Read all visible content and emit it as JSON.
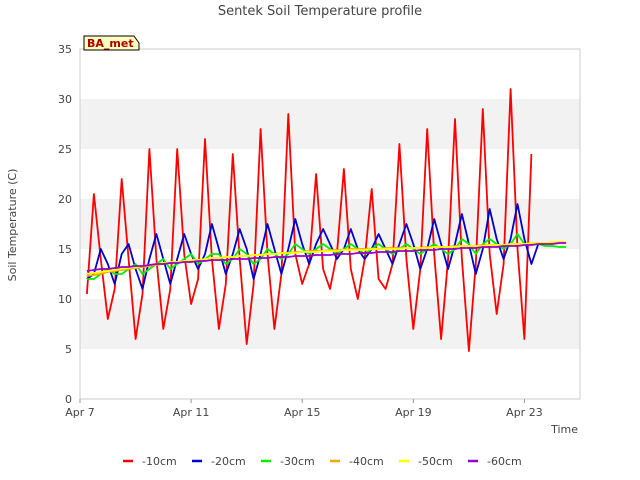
{
  "chart_data": {
    "type": "line",
    "title": "Sentek Soil Temperature profile",
    "xlabel": "Time",
    "ylabel": "Soil Temperature (C)",
    "station_label": "BA_met",
    "x_unit": "date",
    "xlim": [
      "2023-04-07",
      "2023-04-25"
    ],
    "x_ticks": [
      {
        "date": "2023-04-07",
        "label": "Apr 7"
      },
      {
        "date": "2023-04-11",
        "label": "Apr 11"
      },
      {
        "date": "2023-04-15",
        "label": "Apr 15"
      },
      {
        "date": "2023-04-19",
        "label": "Apr 19"
      },
      {
        "date": "2023-04-23",
        "label": "Apr 23"
      }
    ],
    "ylim": [
      0,
      35
    ],
    "y_ticks": [
      0,
      5,
      10,
      15,
      20,
      25,
      30,
      35
    ],
    "grid": "horizontal bands",
    "legend_position": "bottom",
    "x": [
      "2023-04-07 06:00",
      "2023-04-07 12:00",
      "2023-04-07 18:00",
      "2023-04-08 00:00",
      "2023-04-08 06:00",
      "2023-04-08 12:00",
      "2023-04-08 18:00",
      "2023-04-09 00:00",
      "2023-04-09 06:00",
      "2023-04-09 12:00",
      "2023-04-09 18:00",
      "2023-04-10 00:00",
      "2023-04-10 06:00",
      "2023-04-10 12:00",
      "2023-04-10 18:00",
      "2023-04-11 00:00",
      "2023-04-11 06:00",
      "2023-04-11 12:00",
      "2023-04-11 18:00",
      "2023-04-12 00:00",
      "2023-04-12 06:00",
      "2023-04-12 12:00",
      "2023-04-12 18:00",
      "2023-04-13 00:00",
      "2023-04-13 06:00",
      "2023-04-13 12:00",
      "2023-04-13 18:00",
      "2023-04-14 00:00",
      "2023-04-14 06:00",
      "2023-04-14 12:00",
      "2023-04-14 18:00",
      "2023-04-15 00:00",
      "2023-04-15 06:00",
      "2023-04-15 12:00",
      "2023-04-15 18:00",
      "2023-04-16 00:00",
      "2023-04-16 06:00",
      "2023-04-16 12:00",
      "2023-04-16 18:00",
      "2023-04-17 00:00",
      "2023-04-17 06:00",
      "2023-04-17 12:00",
      "2023-04-17 18:00",
      "2023-04-18 00:00",
      "2023-04-18 06:00",
      "2023-04-18 12:00",
      "2023-04-18 18:00",
      "2023-04-19 00:00",
      "2023-04-19 06:00",
      "2023-04-19 12:00",
      "2023-04-19 18:00",
      "2023-04-20 00:00",
      "2023-04-20 06:00",
      "2023-04-20 12:00",
      "2023-04-20 18:00",
      "2023-04-21 00:00",
      "2023-04-21 06:00",
      "2023-04-21 12:00",
      "2023-04-21 18:00",
      "2023-04-22 00:00",
      "2023-04-22 06:00",
      "2023-04-22 12:00",
      "2023-04-22 18:00",
      "2023-04-23 00:00",
      "2023-04-23 06:00",
      "2023-04-23 12:00",
      "2023-04-23 18:00",
      "2023-04-24 00:00",
      "2023-04-24 06:00",
      "2023-04-24 12:00",
      "2023-04-24 18:00"
    ],
    "series": [
      {
        "name": "-10cm",
        "color": "#ff0000",
        "values": [
          10.5,
          20.5,
          14.0,
          8.0,
          11.0,
          22.0,
          14.0,
          6.0,
          10.5,
          25.0,
          14.0,
          7.0,
          11.0,
          25.0,
          14.5,
          9.5,
          12.0,
          26.0,
          14.0,
          7.0,
          11.5,
          24.5,
          14.0,
          5.5,
          11.5,
          27.0,
          14.5,
          7.0,
          12.5,
          28.5,
          14.5,
          11.5,
          13.5,
          22.5,
          13.0,
          11.0,
          14.5,
          23.0,
          13.0,
          10.0,
          14.0,
          21.0,
          12.0,
          11.0,
          13.5,
          25.5,
          14.0,
          7.0,
          13.0,
          27.0,
          14.5,
          6.0,
          14.0,
          28.0,
          14.0,
          4.8,
          13.5,
          29.0,
          14.5,
          8.5,
          13.5,
          31.0,
          15.0,
          6.0,
          24.5,
          null,
          null,
          null,
          null,
          null,
          null
        ]
      },
      {
        "name": "-20cm",
        "color": "#0000cc",
        "values": [
          12.0,
          12.5,
          15.0,
          13.5,
          11.5,
          14.5,
          15.5,
          13.0,
          11.0,
          14.0,
          16.5,
          14.0,
          11.5,
          14.0,
          16.5,
          14.5,
          13.0,
          14.5,
          17.5,
          15.0,
          12.5,
          14.5,
          17.0,
          15.0,
          12.0,
          14.5,
          17.5,
          15.0,
          12.5,
          15.0,
          18.0,
          15.5,
          13.5,
          15.5,
          17.0,
          15.5,
          14.0,
          15.0,
          17.0,
          15.0,
          14.0,
          15.0,
          16.5,
          15.0,
          13.5,
          15.5,
          17.5,
          15.5,
          13.0,
          15.0,
          18.0,
          15.5,
          13.0,
          15.5,
          18.5,
          15.5,
          12.5,
          15.0,
          19.0,
          16.0,
          14.0,
          16.0,
          19.5,
          16.0,
          13.5,
          15.5,
          null,
          null,
          null,
          null,
          null
        ]
      },
      {
        "name": "-30cm",
        "color": "#00ee00",
        "values": [
          12.0,
          12.0,
          12.5,
          13.0,
          12.5,
          12.5,
          13.0,
          13.5,
          12.5,
          13.0,
          13.5,
          14.0,
          13.0,
          13.5,
          14.0,
          14.5,
          13.5,
          14.0,
          14.5,
          14.5,
          13.5,
          14.0,
          15.0,
          14.5,
          13.5,
          14.0,
          15.0,
          14.5,
          14.0,
          14.5,
          15.5,
          15.0,
          14.5,
          15.0,
          15.5,
          15.0,
          14.5,
          15.0,
          15.5,
          15.0,
          14.5,
          15.0,
          15.5,
          15.0,
          14.5,
          15.0,
          15.5,
          15.0,
          14.5,
          15.0,
          15.5,
          15.0,
          14.5,
          15.0,
          16.0,
          15.5,
          14.5,
          15.5,
          16.0,
          15.5,
          15.0,
          15.5,
          16.5,
          15.5,
          15.5,
          15.5,
          15.3,
          15.3,
          15.2,
          15.2,
          null
        ]
      },
      {
        "name": "-40cm",
        "color": "#ffa500",
        "values": [
          12.3,
          12.4,
          12.5,
          12.7,
          12.8,
          12.9,
          13.0,
          13.1,
          13.2,
          13.3,
          13.4,
          13.5,
          13.6,
          13.7,
          13.8,
          13.8,
          13.9,
          14.0,
          14.1,
          14.1,
          14.2,
          14.2,
          14.3,
          14.3,
          14.4,
          14.4,
          14.5,
          14.5,
          14.6,
          14.6,
          14.7,
          14.7,
          14.8,
          14.8,
          14.8,
          14.9,
          14.9,
          14.9,
          15.0,
          15.0,
          15.0,
          15.0,
          15.0,
          15.1,
          15.1,
          15.1,
          15.1,
          15.1,
          15.1,
          15.2,
          15.2,
          15.2,
          15.2,
          15.3,
          15.3,
          15.3,
          15.3,
          15.4,
          15.4,
          15.4,
          15.4,
          15.5,
          15.5,
          15.5,
          15.6,
          15.6,
          15.6,
          15.6,
          15.7,
          15.7,
          null
        ]
      },
      {
        "name": "-50cm",
        "color": "#ffff00",
        "values": [
          12.5,
          12.6,
          12.7,
          12.8,
          12.9,
          13.0,
          13.1,
          13.2,
          13.3,
          13.4,
          13.5,
          13.6,
          13.7,
          13.7,
          13.8,
          13.9,
          13.9,
          14.0,
          14.1,
          14.1,
          14.2,
          14.2,
          14.3,
          14.3,
          14.4,
          14.4,
          14.5,
          14.5,
          14.6,
          14.6,
          14.6,
          14.7,
          14.7,
          14.7,
          14.8,
          14.8,
          14.8,
          14.9,
          14.9,
          14.9,
          14.9,
          15.0,
          15.0,
          15.0,
          15.0,
          15.0,
          15.1,
          15.1,
          15.1,
          15.1,
          15.2,
          15.2,
          15.2,
          15.2,
          15.3,
          15.3,
          15.3,
          15.3,
          15.4,
          15.4,
          15.4,
          15.5,
          15.5,
          15.5,
          15.6,
          15.6,
          15.6,
          15.7,
          15.7,
          15.7,
          null
        ]
      },
      {
        "name": "-60cm",
        "color": "#9900cc",
        "values": [
          12.8,
          12.9,
          13.0,
          13.0,
          13.1,
          13.2,
          13.2,
          13.3,
          13.3,
          13.4,
          13.5,
          13.5,
          13.6,
          13.6,
          13.7,
          13.7,
          13.8,
          13.8,
          13.9,
          13.9,
          13.9,
          14.0,
          14.0,
          14.0,
          14.1,
          14.1,
          14.1,
          14.2,
          14.2,
          14.2,
          14.3,
          14.3,
          14.3,
          14.4,
          14.4,
          14.4,
          14.5,
          14.5,
          14.5,
          14.6,
          14.6,
          14.6,
          14.7,
          14.7,
          14.7,
          14.8,
          14.8,
          14.8,
          14.9,
          14.9,
          14.9,
          15.0,
          15.0,
          15.0,
          15.1,
          15.1,
          15.1,
          15.2,
          15.2,
          15.2,
          15.3,
          15.3,
          15.3,
          15.4,
          15.4,
          15.5,
          15.5,
          15.5,
          15.6,
          15.6,
          null
        ]
      }
    ]
  }
}
